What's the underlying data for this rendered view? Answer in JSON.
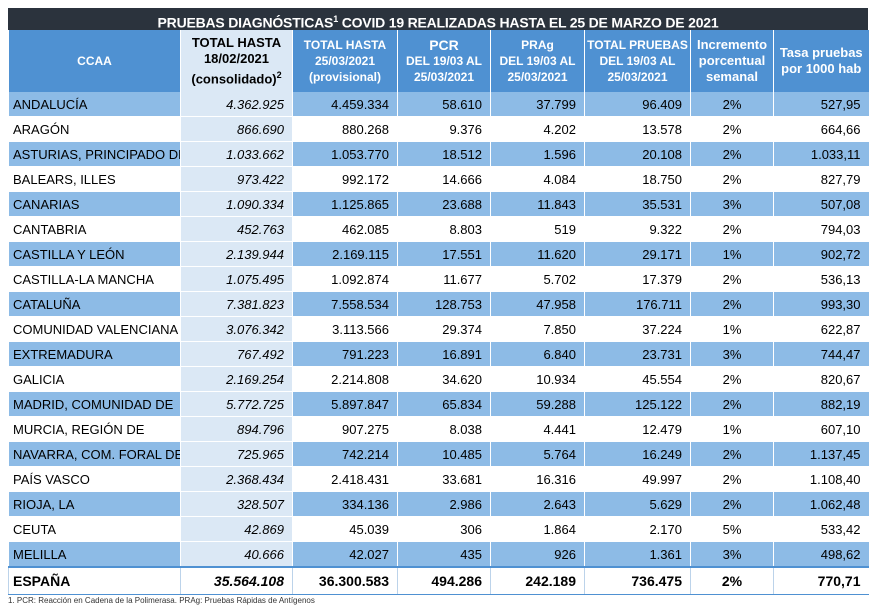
{
  "title": "PRUEBAS DIAGNÓSTICAS",
  "title_sup": "1",
  "title_rest": " COVID 19 REALIZADAS HASTA EL 25 DE MARZO DE 2021",
  "headers": [
    {
      "l1": "CCAA",
      "l2": "",
      "l3": ""
    },
    {
      "l1": "TOTAL HASTA",
      "l2": "18/02/2021",
      "l3": "(consolidado)",
      "sup": "2"
    },
    {
      "l1": "TOTAL  HASTA",
      "l2": "25/03/2021",
      "l3": "(provisional)"
    },
    {
      "l1": "PCR",
      "l2": "DEL 19/03 AL",
      "l3": "25/03/2021"
    },
    {
      "l1": "PRAg",
      "l2": "DEL 19/03 AL",
      "l3": "25/03/2021"
    },
    {
      "l1": "TOTAL PRUEBAS",
      "l2": "DEL 19/03 AL",
      "l3": "25/03/2021"
    },
    {
      "l1": "Incremento",
      "l2": "porcentual",
      "l3": "semanal"
    },
    {
      "l1": "Tasa pruebas",
      "l2": "por 1000 hab",
      "l3": ""
    }
  ],
  "rows": [
    [
      "ANDALUCÍA",
      "4.362.925",
      "4.459.334",
      "58.610",
      "37.799",
      "96.409",
      "2%",
      "527,95"
    ],
    [
      "ARAGÓN",
      "866.690",
      "880.268",
      "9.376",
      "4.202",
      "13.578",
      "2%",
      "664,66"
    ],
    [
      "ASTURIAS, PRINCIPADO DE",
      "1.033.662",
      "1.053.770",
      "18.512",
      "1.596",
      "20.108",
      "2%",
      "1.033,11"
    ],
    [
      "BALEARS, ILLES",
      "973.422",
      "992.172",
      "14.666",
      "4.084",
      "18.750",
      "2%",
      "827,79"
    ],
    [
      "CANARIAS",
      "1.090.334",
      "1.125.865",
      "23.688",
      "11.843",
      "35.531",
      "3%",
      "507,08"
    ],
    [
      "CANTABRIA",
      "452.763",
      "462.085",
      "8.803",
      "519",
      "9.322",
      "2%",
      "794,03"
    ],
    [
      "CASTILLA Y LEÓN",
      "2.139.944",
      "2.169.115",
      "17.551",
      "11.620",
      "29.171",
      "1%",
      "902,72"
    ],
    [
      "CASTILLA-LA MANCHA",
      "1.075.495",
      "1.092.874",
      "11.677",
      "5.702",
      "17.379",
      "2%",
      "536,13"
    ],
    [
      "CATALUÑA",
      "7.381.823",
      "7.558.534",
      "128.753",
      "47.958",
      "176.711",
      "2%",
      "993,30"
    ],
    [
      "COMUNIDAD VALENCIANA",
      "3.076.342",
      "3.113.566",
      "29.374",
      "7.850",
      "37.224",
      "1%",
      "622,87"
    ],
    [
      "EXTREMADURA",
      "767.492",
      "791.223",
      "16.891",
      "6.840",
      "23.731",
      "3%",
      "744,47"
    ],
    [
      "GALICIA",
      "2.169.254",
      "2.214.808",
      "34.620",
      "10.934",
      "45.554",
      "2%",
      "820,67"
    ],
    [
      "MADRID, COMUNIDAD DE",
      "5.772.725",
      "5.897.847",
      "65.834",
      "59.288",
      "125.122",
      "2%",
      "882,19"
    ],
    [
      "MURCIA, REGIÓN DE",
      "894.796",
      "907.275",
      "8.038",
      "4.441",
      "12.479",
      "1%",
      "607,10"
    ],
    [
      "NAVARRA, COM. FORAL DE",
      "725.965",
      "742.214",
      "10.485",
      "5.764",
      "16.249",
      "2%",
      "1.137,45"
    ],
    [
      "PAÍS VASCO",
      "2.368.434",
      "2.418.431",
      "33.681",
      "16.316",
      "49.997",
      "2%",
      "1.108,40"
    ],
    [
      "RIOJA, LA",
      "328.507",
      "334.136",
      "2.986",
      "2.643",
      "5.629",
      "2%",
      "1.062,48"
    ],
    [
      "CEUTA",
      "42.869",
      "45.039",
      "306",
      "1.864",
      "2.170",
      "5%",
      "533,42"
    ],
    [
      "MELILLA",
      "40.666",
      "42.027",
      "435",
      "926",
      "1.361",
      "3%",
      "498,62"
    ]
  ],
  "total": [
    "ESPAÑA",
    "35.564.108",
    "36.300.583",
    "494.286",
    "242.189",
    "736.475",
    "2%",
    "770,71"
  ],
  "footnote": "1. PCR: Reacción en Cadena de la Polimerasa. PRAg: Pruebas Rápidas de Antígenos",
  "colors": {
    "title_bg": "#2b333d",
    "header_bg": "#4f91d2",
    "row_blue": "#8dbbe6",
    "consolidated_col": "#dbe8f5"
  }
}
